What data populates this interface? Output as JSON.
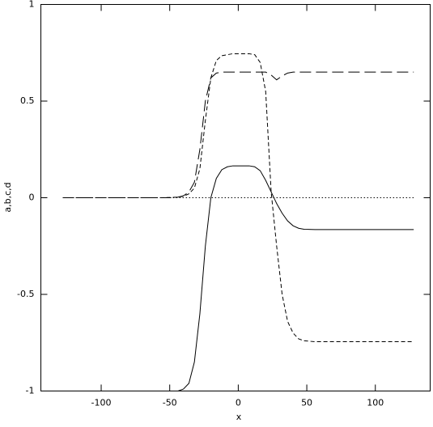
{
  "chart_data": {
    "type": "line",
    "x_label": "x",
    "y_label": "a,b,c,d",
    "x": [
      -128,
      -112,
      -96,
      -80,
      -64,
      -56,
      -48,
      -44,
      -40,
      -36,
      -32,
      -28,
      -24,
      -20,
      -16,
      -12,
      -8,
      -4,
      0,
      4,
      8,
      12,
      16,
      20,
      24,
      28,
      32,
      36,
      40,
      44,
      48,
      56,
      64,
      80,
      96,
      112,
      128
    ],
    "series": [
      {
        "color": "#000000",
        "dash": "solid",
        "values": [
          -1,
          -1,
          -1,
          -1,
          -1,
          -1,
          -1,
          -1,
          -0.99,
          -0.96,
          -0.85,
          -0.6,
          -0.25,
          0.0,
          0.1,
          0.145,
          0.16,
          0.165,
          0.165,
          0.165,
          0.165,
          0.16,
          0.14,
          0.09,
          0.03,
          -0.03,
          -0.08,
          -0.12,
          -0.145,
          -0.158,
          -0.163,
          -0.165,
          -0.165,
          -0.165,
          -0.165,
          -0.165,
          -0.165
        ]
      },
      {
        "color": "#000000",
        "dash": "dashed",
        "values": [
          0,
          0,
          0,
          0,
          0,
          0,
          0.002,
          0.003,
          0.008,
          0.02,
          0.05,
          0.15,
          0.4,
          0.62,
          0.71,
          0.735,
          0.74,
          0.745,
          0.745,
          0.745,
          0.745,
          0.74,
          0.7,
          0.55,
          0.03,
          -0.25,
          -0.5,
          -0.64,
          -0.7,
          -0.73,
          -0.74,
          -0.745,
          -0.745,
          -0.745,
          -0.745,
          -0.745,
          -0.745
        ]
      },
      {
        "color": "#000000",
        "dash": "longdash",
        "values": [
          0,
          0,
          0,
          0,
          0,
          0,
          0,
          0.003,
          0.01,
          0.03,
          0.08,
          0.25,
          0.5,
          0.62,
          0.645,
          0.65,
          0.65,
          0.65,
          0.65,
          0.65,
          0.65,
          0.65,
          0.65,
          0.65,
          0.635,
          0.61,
          0.63,
          0.645,
          0.65,
          0.65,
          0.65,
          0.65,
          0.65,
          0.65,
          0.65,
          0.65,
          0.65
        ]
      },
      {
        "color": "#000000",
        "dash": "dotted",
        "values": [
          0,
          0,
          0,
          0,
          0,
          0,
          0,
          0,
          0,
          0,
          0,
          0,
          0,
          0,
          0,
          0,
          0,
          0,
          0,
          0,
          0,
          0,
          0,
          0,
          0,
          0,
          0,
          0,
          0,
          0,
          0,
          0,
          0,
          0,
          0,
          0,
          0
        ]
      }
    ],
    "xlim": [
      -144,
      140
    ],
    "ylim": [
      -1,
      1
    ],
    "xticks": [
      -100,
      -50,
      0,
      50,
      100
    ],
    "yticks": [
      -1,
      -0.5,
      0,
      0.5,
      1
    ],
    "grid": false
  }
}
